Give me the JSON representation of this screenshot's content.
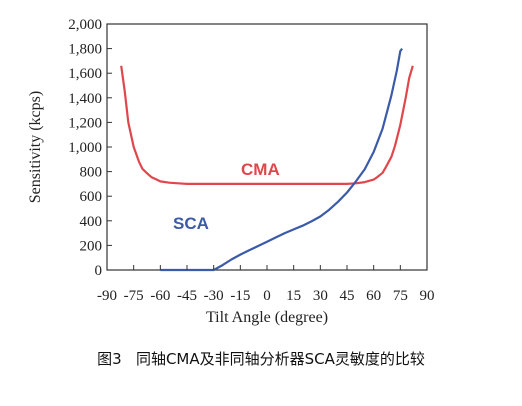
{
  "chart_data": {
    "type": "line",
    "xlabel": "Tilt Angle (degree)",
    "ylabel": "Sensitivity (kcps)",
    "x_ticks": [
      -90,
      -75,
      -60,
      -45,
      -30,
      -15,
      0,
      15,
      30,
      45,
      60,
      75,
      90
    ],
    "y_ticks": [
      0,
      200,
      400,
      600,
      800,
      1000,
      1200,
      1400,
      1600,
      1800,
      2000
    ],
    "x_tick_labels": [
      "-90",
      "-75",
      "-60",
      "-45",
      "-30",
      "-15",
      "0",
      "15",
      "30",
      "45",
      "60",
      "75",
      "90"
    ],
    "y_tick_labels": [
      "0",
      "200",
      "400",
      "600",
      "800",
      "1,000",
      "1,200",
      "1,400",
      "1,600",
      "1,800",
      "2,000"
    ],
    "xlim": [
      -90,
      90
    ],
    "ylim": [
      0,
      2000
    ],
    "grid": false,
    "series": [
      {
        "name": "CMA",
        "color": "#e0474c",
        "x": [
          -82,
          -80,
          -78,
          -75,
          -72,
          -70,
          -67,
          -65,
          -62,
          -60,
          -55,
          -50,
          -45,
          -30,
          -15,
          0,
          15,
          30,
          45,
          50,
          55,
          60,
          62,
          65,
          67,
          70,
          72,
          75,
          78,
          80,
          82
        ],
        "y": [
          1660,
          1450,
          1200,
          1000,
          880,
          820,
          780,
          755,
          735,
          720,
          710,
          705,
          700,
          700,
          700,
          700,
          700,
          700,
          700,
          705,
          715,
          735,
          755,
          790,
          840,
          920,
          1010,
          1180,
          1400,
          1560,
          1660
        ]
      },
      {
        "name": "SCA",
        "color": "#3b5ba9",
        "x": [
          -60,
          -45,
          -40,
          -35,
          -30,
          -25,
          -20,
          -15,
          -10,
          -5,
          0,
          5,
          10,
          15,
          20,
          25,
          30,
          35,
          40,
          45,
          50,
          55,
          60,
          65,
          70,
          73,
          75,
          76
        ],
        "y": [
          0,
          0,
          0,
          0,
          0,
          40,
          85,
          125,
          160,
          195,
          230,
          265,
          300,
          330,
          360,
          395,
          435,
          490,
          555,
          630,
          720,
          820,
          960,
          1150,
          1420,
          1620,
          1780,
          1800
        ]
      }
    ]
  },
  "caption": "图3   同轴CMA及非同轴分析器SCA灵敏度的比较"
}
